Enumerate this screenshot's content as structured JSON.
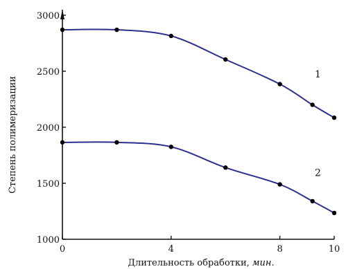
{
  "chart_data": {
    "type": "line",
    "title": "",
    "xlabel": "Длительность обработки,",
    "xlabel_unit": "мин.",
    "ylabel": "Степень полимеризации",
    "xlim": [
      0,
      10
    ],
    "ylim": [
      1000,
      3000
    ],
    "x_ticks": [
      "0",
      "4",
      "8",
      "10"
    ],
    "y_ticks": [
      "1000",
      "1500",
      "2000",
      "2500",
      "3000"
    ],
    "grid": false,
    "legend": "none",
    "colors": {
      "line": "#2b2f8f",
      "marker": "#000000",
      "axis": "#111111"
    },
    "series": [
      {
        "label": "1",
        "x": [
          0,
          2,
          4,
          6,
          8,
          9.2,
          10
        ],
        "y": [
          2870,
          2870,
          2815,
          2605,
          2385,
          2200,
          2085
        ]
      },
      {
        "label": "2",
        "x": [
          0,
          2,
          4,
          6,
          8,
          9.2,
          10
        ],
        "y": [
          1865,
          1865,
          1825,
          1640,
          1490,
          1340,
          1235
        ]
      }
    ]
  }
}
